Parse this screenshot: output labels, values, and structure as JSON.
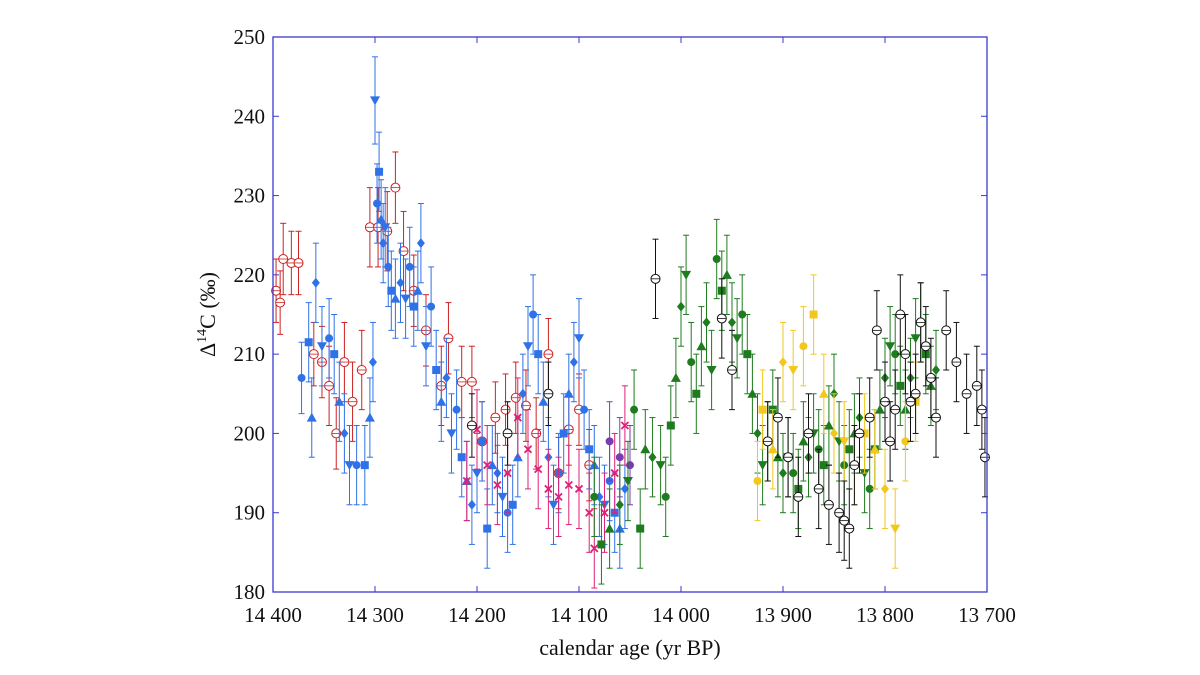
{
  "chart_data": {
    "type": "scatter",
    "title": "",
    "xlabel": "calendar age (yr BP)",
    "ylabel": {
      "prefix": "Δ",
      "sup": "14",
      "suffix": "C (‰)"
    },
    "xlim": [
      14400,
      13700
    ],
    "x_reversed": true,
    "ylim": [
      180,
      250
    ],
    "x_ticks": [
      14400,
      14300,
      14200,
      14100,
      14000,
      13900,
      13800,
      13700
    ],
    "x_tick_labels": [
      "14 400",
      "14 300",
      "14 200",
      "14 100",
      "14 000",
      "13 900",
      "13 800",
      "13 700"
    ],
    "y_ticks": [
      180,
      190,
      200,
      210,
      220,
      230,
      240,
      250
    ],
    "y_tick_labels": [
      "180",
      "190",
      "200",
      "210",
      "220",
      "230",
      "240",
      "250"
    ],
    "grid": false,
    "legend": "none",
    "frame_color": "#3a3ad0",
    "series": [
      {
        "color": "#cc2222",
        "marker": "open-circle",
        "points": [
          [
            14397,
            218,
            4
          ],
          [
            14393,
            216.5,
            4
          ],
          [
            14390,
            222,
            4.5
          ],
          [
            14382,
            221.5,
            4
          ],
          [
            14375,
            221.5,
            4
          ],
          [
            14360,
            210,
            4
          ],
          [
            14352,
            209,
            4.5
          ],
          [
            14345,
            206,
            5
          ],
          [
            14338,
            200,
            4.5
          ],
          [
            14330,
            209,
            5
          ],
          [
            14322,
            204,
            5
          ],
          [
            14313,
            208,
            5
          ],
          [
            14305,
            226,
            5
          ],
          [
            14297,
            226,
            5
          ],
          [
            14288,
            225.5,
            5
          ],
          [
            14280,
            231,
            4.5
          ],
          [
            14272,
            223,
            5
          ],
          [
            14262,
            218,
            4.5
          ],
          [
            14250,
            213,
            4.5
          ],
          [
            14235,
            206,
            5
          ],
          [
            14228,
            212,
            4.5
          ],
          [
            14215,
            206.5,
            4.5
          ],
          [
            14205,
            206.5,
            4.5
          ],
          [
            14195,
            199,
            5
          ],
          [
            14182,
            202,
            4.5
          ],
          [
            14172,
            203,
            4.5
          ],
          [
            14162,
            204.5,
            4.5
          ],
          [
            14152,
            203.5,
            4.5
          ],
          [
            14142,
            200,
            4.5
          ],
          [
            14130,
            210,
            4.5
          ],
          [
            14120,
            195,
            4.5
          ],
          [
            14110,
            200.5,
            4.5
          ],
          [
            14100,
            203,
            4.5
          ],
          [
            14090,
            196,
            4.5
          ]
        ]
      },
      {
        "color": "#2f72e8",
        "marker": "filled-mixed",
        "points": [
          [
            14372,
            207,
            4.5
          ],
          [
            14365,
            211.5,
            5
          ],
          [
            14362,
            202,
            5
          ],
          [
            14358,
            219,
            5
          ],
          [
            14352,
            211,
            5
          ],
          [
            14345,
            212,
            5
          ],
          [
            14340,
            210,
            5
          ],
          [
            14335,
            204,
            5
          ],
          [
            14330,
            200,
            5
          ],
          [
            14325,
            196,
            5
          ],
          [
            14318,
            196,
            5
          ],
          [
            14310,
            196,
            5
          ],
          [
            14305,
            202,
            5
          ],
          [
            14302,
            209,
            5
          ],
          [
            14300,
            242,
            5.5
          ],
          [
            14298,
            229,
            5
          ],
          [
            14296,
            233,
            5
          ],
          [
            14294,
            227,
            5
          ],
          [
            14292,
            224,
            5
          ],
          [
            14290,
            226,
            5
          ],
          [
            14287,
            221,
            5
          ],
          [
            14284,
            218,
            5
          ],
          [
            14280,
            217,
            5
          ],
          [
            14275,
            219,
            5
          ],
          [
            14270,
            217,
            5
          ],
          [
            14266,
            221,
            5
          ],
          [
            14262,
            216,
            5
          ],
          [
            14258,
            218,
            5
          ],
          [
            14255,
            224,
            5
          ],
          [
            14250,
            211,
            5
          ],
          [
            14245,
            216,
            5
          ],
          [
            14240,
            208,
            5
          ],
          [
            14235,
            204,
            5
          ],
          [
            14230,
            207,
            5
          ],
          [
            14225,
            200,
            5
          ],
          [
            14220,
            203,
            5
          ],
          [
            14215,
            197,
            5
          ],
          [
            14210,
            194,
            5
          ],
          [
            14205,
            191,
            5
          ],
          [
            14200,
            195,
            5
          ],
          [
            14195,
            199,
            5
          ],
          [
            14190,
            188,
            5
          ],
          [
            14185,
            196,
            5
          ],
          [
            14180,
            195,
            5
          ],
          [
            14175,
            192,
            5
          ],
          [
            14170,
            190,
            5
          ],
          [
            14165,
            191,
            5
          ],
          [
            14160,
            197,
            5
          ],
          [
            14155,
            205,
            5
          ],
          [
            14150,
            211,
            5
          ],
          [
            14145,
            215,
            5
          ],
          [
            14140,
            210,
            5
          ],
          [
            14135,
            204,
            5
          ],
          [
            14130,
            197,
            5
          ],
          [
            14125,
            191,
            5
          ],
          [
            14120,
            195,
            5
          ],
          [
            14115,
            200,
            5
          ],
          [
            14110,
            205,
            5
          ],
          [
            14105,
            209,
            5
          ],
          [
            14100,
            212,
            5
          ],
          [
            14095,
            203,
            5
          ],
          [
            14090,
            198,
            5
          ],
          [
            14085,
            196,
            5
          ],
          [
            14080,
            192,
            5
          ],
          [
            14075,
            191,
            5
          ],
          [
            14070,
            194,
            5
          ],
          [
            14065,
            190,
            5
          ],
          [
            14060,
            188,
            5
          ],
          [
            14055,
            193,
            5
          ]
        ]
      },
      {
        "color": "#dd2277",
        "marker": "x",
        "points": [
          [
            14210,
            194,
            5
          ],
          [
            14200,
            200.5,
            5
          ],
          [
            14190,
            196,
            5
          ],
          [
            14180,
            193.5,
            5
          ],
          [
            14170,
            195,
            5
          ],
          [
            14160,
            202,
            5
          ],
          [
            14150,
            198,
            5
          ],
          [
            14140,
            195.5,
            5
          ],
          [
            14130,
            193,
            5
          ],
          [
            14120,
            192,
            5
          ],
          [
            14110,
            193.5,
            5
          ],
          [
            14100,
            193,
            5
          ],
          [
            14090,
            190,
            5
          ],
          [
            14085,
            185.5,
            5
          ],
          [
            14075,
            190,
            5
          ],
          [
            14065,
            195,
            5
          ],
          [
            14055,
            201,
            5
          ]
        ]
      },
      {
        "color": "#7a3ab0",
        "marker": "filled-circle",
        "points": [
          [
            14070,
            199,
            5
          ],
          [
            14060,
            197,
            5
          ],
          [
            14050,
            196,
            5
          ]
        ]
      },
      {
        "color": "#1e7b1e",
        "marker": "filled-mixed",
        "points": [
          [
            14085,
            192,
            5
          ],
          [
            14078,
            186,
            5
          ],
          [
            14070,
            188,
            5
          ],
          [
            14060,
            191,
            5
          ],
          [
            14052,
            194,
            5
          ],
          [
            14046,
            203,
            5
          ],
          [
            14040,
            188,
            5
          ],
          [
            14035,
            198,
            5
          ],
          [
            14028,
            197,
            5
          ],
          [
            14020,
            196,
            5
          ],
          [
            14015,
            192,
            5
          ],
          [
            14010,
            201,
            5
          ],
          [
            14005,
            207,
            5
          ],
          [
            14000,
            216,
            5
          ],
          [
            13995,
            220,
            5
          ],
          [
            13990,
            209,
            5
          ],
          [
            13985,
            205,
            5
          ],
          [
            13980,
            211,
            5
          ],
          [
            13975,
            214,
            5
          ],
          [
            13970,
            208,
            5
          ],
          [
            13965,
            222,
            5
          ],
          [
            13960,
            218,
            5
          ],
          [
            13955,
            220,
            5
          ],
          [
            13950,
            214,
            5
          ],
          [
            13945,
            212,
            5
          ],
          [
            13940,
            215,
            5
          ],
          [
            13935,
            210,
            5
          ],
          [
            13930,
            205,
            5
          ],
          [
            13925,
            200,
            5
          ],
          [
            13920,
            196,
            5
          ],
          [
            13915,
            199,
            5
          ],
          [
            13910,
            203,
            5
          ],
          [
            13905,
            197,
            5
          ],
          [
            13900,
            195,
            5
          ],
          [
            13895,
            197,
            5
          ],
          [
            13890,
            195,
            5
          ],
          [
            13885,
            193,
            5
          ],
          [
            13880,
            199,
            5
          ],
          [
            13875,
            197,
            5
          ],
          [
            13870,
            200,
            5
          ],
          [
            13865,
            198,
            5
          ],
          [
            13860,
            196,
            5
          ],
          [
            13855,
            201,
            5
          ],
          [
            13850,
            205,
            5
          ],
          [
            13845,
            199,
            5
          ],
          [
            13840,
            196,
            5
          ],
          [
            13835,
            198,
            5
          ],
          [
            13830,
            200,
            5
          ],
          [
            13825,
            202,
            5
          ],
          [
            13820,
            195,
            5
          ],
          [
            13815,
            193,
            5
          ],
          [
            13810,
            198,
            5
          ],
          [
            13805,
            203,
            5
          ],
          [
            13800,
            207,
            5
          ],
          [
            13795,
            211,
            5
          ],
          [
            13790,
            210,
            5
          ],
          [
            13785,
            206,
            5
          ],
          [
            13780,
            203,
            5
          ],
          [
            13775,
            207,
            5
          ],
          [
            13770,
            212,
            5
          ],
          [
            13765,
            214,
            5
          ],
          [
            13760,
            210,
            5
          ],
          [
            13755,
            206,
            5
          ],
          [
            13750,
            208,
            5
          ]
        ]
      },
      {
        "color": "#f2c81e",
        "marker": "filled-mixed",
        "points": [
          [
            13925,
            194,
            5
          ],
          [
            13920,
            203,
            5
          ],
          [
            13910,
            198,
            5
          ],
          [
            13900,
            209,
            5
          ],
          [
            13890,
            208,
            5
          ],
          [
            13880,
            211,
            5
          ],
          [
            13870,
            215,
            5
          ],
          [
            13860,
            205,
            5
          ],
          [
            13850,
            200,
            5
          ],
          [
            13840,
            199,
            5
          ],
          [
            13830,
            196,
            5
          ],
          [
            13820,
            200,
            5
          ],
          [
            13810,
            198,
            5
          ],
          [
            13800,
            193,
            5
          ],
          [
            13790,
            188,
            5
          ],
          [
            13780,
            199,
            5
          ],
          [
            13770,
            204,
            5
          ]
        ]
      },
      {
        "color": "#111111",
        "marker": "open-circle",
        "points": [
          [
            14205,
            201,
            4
          ],
          [
            14170,
            200,
            4
          ],
          [
            14130,
            205,
            4
          ],
          [
            14025,
            219.5,
            5
          ],
          [
            13960,
            214.5,
            5
          ],
          [
            13950,
            208,
            5
          ],
          [
            13915,
            199,
            5
          ],
          [
            13905,
            202,
            5
          ],
          [
            13895,
            197,
            5
          ],
          [
            13885,
            192,
            5
          ],
          [
            13875,
            200,
            5
          ],
          [
            13865,
            193,
            5
          ],
          [
            13855,
            191,
            5
          ],
          [
            13845,
            190,
            5
          ],
          [
            13840,
            189,
            5
          ],
          [
            13835,
            188,
            5
          ],
          [
            13830,
            196,
            5
          ],
          [
            13825,
            200,
            5
          ],
          [
            13815,
            202,
            5
          ],
          [
            13808,
            213,
            5
          ],
          [
            13800,
            204,
            5
          ],
          [
            13795,
            199,
            5
          ],
          [
            13790,
            203,
            5
          ],
          [
            13785,
            215,
            5
          ],
          [
            13780,
            210,
            5
          ],
          [
            13775,
            204,
            5
          ],
          [
            13770,
            205,
            5
          ],
          [
            13765,
            214,
            5
          ],
          [
            13760,
            211,
            5
          ],
          [
            13755,
            207,
            5
          ],
          [
            13750,
            202,
            5
          ],
          [
            13740,
            213,
            5
          ],
          [
            13730,
            209,
            5
          ],
          [
            13720,
            205,
            5
          ],
          [
            13710,
            206,
            5
          ],
          [
            13705,
            203,
            5
          ],
          [
            13702,
            197,
            5
          ]
        ]
      }
    ]
  }
}
